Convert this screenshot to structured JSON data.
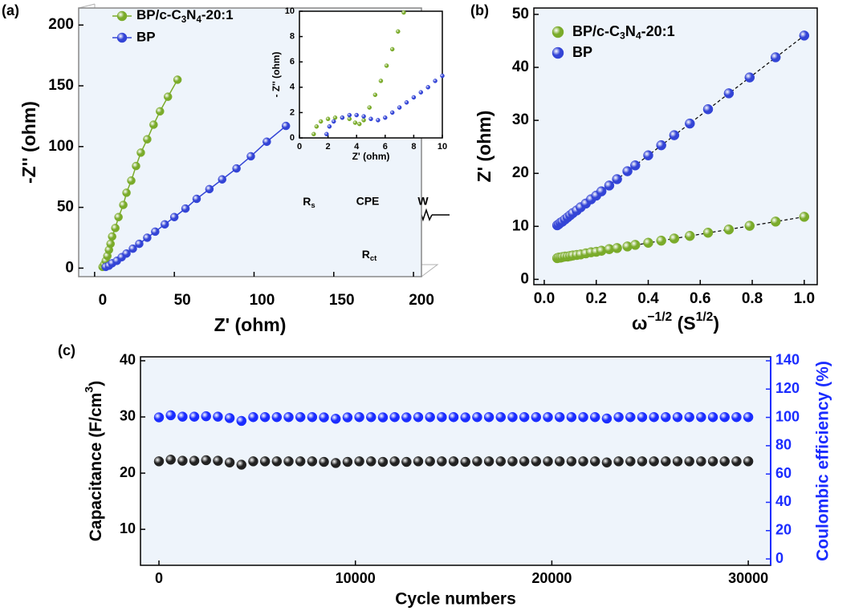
{
  "chart_data": [
    {
      "type": "line",
      "label": "(a)",
      "xlabel": "Z' (ohm)",
      "ylabel": "-Z'' (ohm)",
      "xlim": [
        -10,
        205
      ],
      "ylim": [
        -7,
        214
      ],
      "xticks": [
        0,
        50,
        100,
        150,
        200
      ],
      "yticks": [
        0,
        50,
        100,
        150,
        200
      ],
      "series": [
        {
          "name": [
            "BP/c-C",
            {
              "text": "3",
              "pos": "sub"
            },
            "N",
            {
              "text": "4",
              "pos": "sub"
            },
            "-20:1"
          ],
          "color": "#7aab2a",
          "x": [
            5,
            6,
            7,
            8,
            9,
            10,
            11,
            13,
            15,
            18,
            20,
            23,
            26,
            29,
            33,
            37,
            41,
            46,
            52
          ],
          "values": [
            1,
            3,
            6,
            10,
            15,
            20,
            26,
            33,
            42,
            52,
            62,
            72,
            84,
            95,
            106,
            118,
            129,
            141,
            155
          ]
        },
        {
          "name": "BP",
          "color": "#3344d6",
          "x": [
            7,
            9,
            11,
            14,
            17,
            20,
            24,
            28,
            33,
            38,
            44,
            50,
            57,
            64,
            72,
            80,
            89,
            98,
            108,
            120
          ],
          "values": [
            1,
            2,
            4,
            6,
            9,
            12,
            16,
            20,
            25,
            30,
            36,
            42,
            49,
            57,
            65,
            73,
            82,
            92,
            104,
            117
          ]
        }
      ],
      "inset": {
        "xlabel": "Z' (ohm)",
        "ylabel": "- Z'' (ohm)",
        "xlim": [
          0,
          10
        ],
        "ylim": [
          0,
          10
        ],
        "xticks": [
          0,
          2,
          4,
          6,
          8,
          10
        ],
        "yticks": [
          0,
          2,
          4,
          6,
          8,
          10
        ],
        "series": [
          {
            "color": "#7aab2a",
            "x": [
              1.0,
              1.2,
              1.5,
              2,
              2.5,
              3,
              3.5,
              3.9,
              4.2,
              4.5,
              4.9,
              5.3,
              5.7,
              6.1,
              6.5,
              6.9,
              7.3
            ],
            "values": [
              0.3,
              0.9,
              1.3,
              1.5,
              1.6,
              1.6,
              1.5,
              1.2,
              1.1,
              1.4,
              2.4,
              3.4,
              4.5,
              5.7,
              7.0,
              8.4,
              9.9
            ]
          },
          {
            "color": "#3344d6",
            "x": [
              1.9,
              2.1,
              2.4,
              3,
              3.5,
              4,
              4.5,
              5,
              5.5,
              6,
              6.5,
              7,
              7.5,
              8,
              8.5,
              9,
              9.5,
              10
            ],
            "values": [
              0.3,
              0.9,
              1.3,
              1.6,
              1.8,
              1.8,
              1.7,
              1.5,
              1.4,
              1.6,
              2.0,
              2.4,
              2.8,
              3.2,
              3.6,
              4.0,
              4.5,
              4.9
            ]
          }
        ]
      },
      "circuit": [
        [
          "R",
          {
            "text": "s",
            "pos": "sub"
          }
        ],
        "CPE",
        "W",
        [
          "R",
          {
            "text": "ct",
            "pos": "sub"
          }
        ]
      ]
    },
    {
      "type": "scatter",
      "label": "(b)",
      "xlabel": [
        "ω",
        {
          "text": "−1/2",
          "pos": "sup"
        },
        " (S",
        {
          "text": "1/2",
          "pos": "sup"
        },
        ")"
      ],
      "ylabel": "Z' (ohm)",
      "xlim": [
        -0.04,
        1.05
      ],
      "ylim": [
        -1,
        51.2
      ],
      "xticks": [
        {
          "value": 0,
          "label": "0.0"
        },
        0.2,
        0.4,
        0.6,
        0.8,
        {
          "value": 1,
          "label": "1.0"
        }
      ],
      "yticks": [
        0,
        10,
        20,
        30,
        40,
        50
      ],
      "fit_lines": true,
      "x": [
        0.05,
        0.056,
        0.063,
        0.07,
        0.08,
        0.09,
        0.1,
        0.11,
        0.125,
        0.14,
        0.16,
        0.18,
        0.2,
        0.22,
        0.25,
        0.28,
        0.32,
        0.35,
        0.4,
        0.45,
        0.5,
        0.56,
        0.63,
        0.71,
        0.79,
        0.89,
        1.0
      ],
      "series": [
        {
          "name": [
            "BP/c-C",
            {
              "text": "3",
              "pos": "sub"
            },
            "N",
            {
              "text": "4",
              "pos": "sub"
            },
            "-20:1"
          ],
          "color": "#7aab2a",
          "values": [
            4.0,
            4.1,
            4.1,
            4.2,
            4.3,
            4.3,
            4.4,
            4.5,
            4.6,
            4.7,
            4.9,
            5.1,
            5.2,
            5.4,
            5.7,
            5.9,
            6.2,
            6.5,
            6.9,
            7.3,
            7.7,
            8.2,
            8.8,
            9.4,
            10.1,
            10.9,
            11.8
          ]
        },
        {
          "name": "BP",
          "color": "#3344d6",
          "values": [
            10.2,
            10.4,
            10.7,
            10.9,
            11.3,
            11.7,
            12.1,
            12.5,
            13.0,
            13.6,
            14.3,
            15.1,
            15.8,
            16.6,
            17.7,
            18.9,
            20.4,
            21.5,
            23.4,
            25.3,
            27.2,
            29.4,
            32.1,
            35.1,
            38.1,
            41.9,
            46.0
          ]
        }
      ]
    },
    {
      "type": "scatter",
      "label": "(c)",
      "xlabel": "Cycle numbers",
      "ylabel": [
        "Capacitance (F/cm",
        {
          "text": "3",
          "pos": "sup"
        },
        ")"
      ],
      "y2label": "Coulombic efficiency (%)",
      "xlim": [
        -940,
        31140
      ],
      "ylim": [
        3.6,
        40.7
      ],
      "y2lim": [
        -4.5,
        142.8
      ],
      "xticks": [
        0,
        10000,
        20000,
        30000
      ],
      "yticks": [
        10,
        20,
        30,
        40
      ],
      "y2ticks": [
        0,
        20,
        40,
        60,
        80,
        100,
        120,
        140
      ],
      "x": [
        0,
        600,
        1200,
        1800,
        2400,
        3000,
        3600,
        4200,
        4800,
        5400,
        6000,
        6600,
        7200,
        7800,
        8400,
        9000,
        9600,
        10200,
        10800,
        11400,
        12000,
        12600,
        13200,
        13800,
        14400,
        15000,
        15600,
        16200,
        16800,
        17400,
        18000,
        18600,
        19200,
        19800,
        20400,
        21000,
        21600,
        22200,
        22800,
        23400,
        24000,
        24600,
        25200,
        25800,
        26400,
        27000,
        27600,
        28200,
        28800,
        29400,
        30000
      ],
      "series": [
        {
          "color": "#222222",
          "values": [
            22.1,
            22.4,
            22.2,
            22.2,
            22.3,
            22.2,
            21.9,
            21.5,
            22.1,
            22.1,
            22.1,
            22.1,
            22.1,
            22.1,
            22.0,
            21.8,
            22.0,
            22.1,
            22.1,
            22.0,
            22.1,
            22.0,
            22.1,
            22.1,
            22.1,
            22.1,
            22.0,
            22.1,
            22.1,
            22.1,
            22.1,
            22.1,
            22.1,
            22.1,
            22.1,
            22.1,
            22.1,
            22.1,
            21.9,
            22.1,
            22.1,
            22.1,
            22.1,
            22.1,
            22.1,
            22.1,
            22.1,
            22.1,
            22.1,
            22.1,
            22.1
          ]
        },
        {
          "color": "#1a2cff",
          "axis": "y2",
          "values": [
            100,
            101.5,
            100.5,
            100.5,
            100.8,
            100.5,
            99.5,
            97.5,
            100.2,
            100.2,
            100.2,
            100.2,
            100.2,
            100.2,
            100,
            99,
            100,
            100.2,
            100.2,
            100,
            100.2,
            100,
            100.2,
            100.2,
            100.2,
            100.2,
            100,
            100.2,
            100.2,
            100.2,
            100.2,
            100.2,
            100.2,
            100.2,
            100.2,
            100.2,
            100.2,
            100.2,
            99.2,
            100.2,
            100.2,
            100.2,
            100.2,
            100.2,
            100.2,
            100.2,
            100.2,
            100.2,
            100.2,
            100.2,
            100.2
          ]
        }
      ]
    }
  ]
}
